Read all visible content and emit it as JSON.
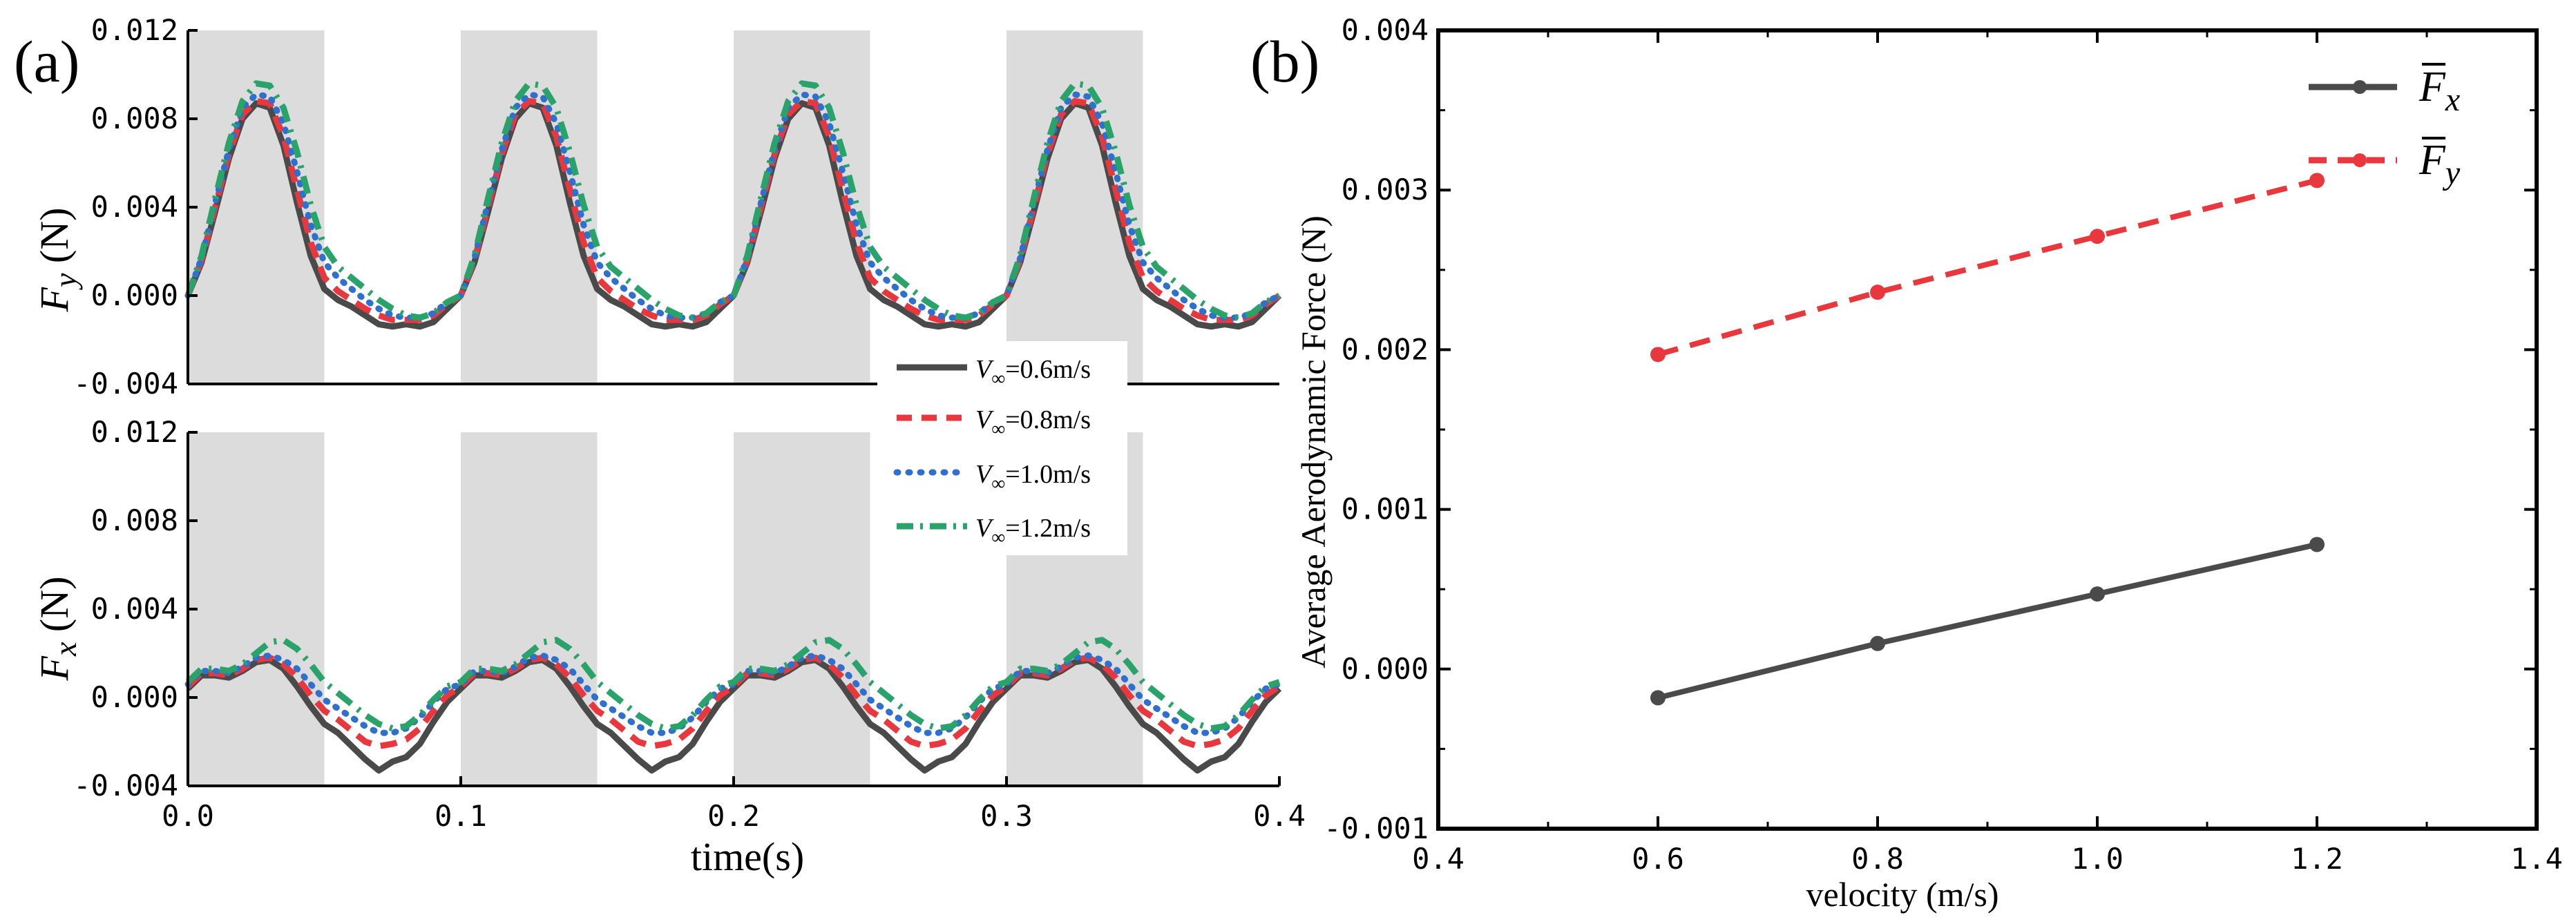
{
  "panel_labels": {
    "a": "(a)",
    "b": "(b)"
  },
  "legend_a": {
    "entries": [
      {
        "var": "V",
        "sub": "∞",
        "text": "=0.6m/s",
        "color": "#4a4a4a",
        "style": "solid"
      },
      {
        "var": "V",
        "sub": "∞",
        "text": "=0.8m/s",
        "color": "#e8383d",
        "style": "dashed"
      },
      {
        "var": "V",
        "sub": "∞",
        "text": "=1.0m/s",
        "color": "#2f6fce",
        "style": "dotted"
      },
      {
        "var": "V",
        "sub": "∞",
        "text": "=1.2m/s",
        "color": "#2aa36b",
        "style": "dashdot"
      }
    ]
  },
  "legend_b": {
    "entries": [
      {
        "var": "F",
        "sub": "x",
        "color": "#4a4a4a",
        "style": "solid"
      },
      {
        "var": "F",
        "sub": "y",
        "color": "#e8383d",
        "style": "dashed"
      }
    ]
  },
  "chart_data": [
    {
      "id": "a-top",
      "type": "line",
      "ylabel_var": "F",
      "ylabel_sub": "y",
      "ylabel_unit": " (N)",
      "xlim": [
        0.0,
        0.4
      ],
      "ylim": [
        -0.004,
        0.012
      ],
      "yticks": [
        "-0.004",
        "0.000",
        "0.004",
        "0.008",
        "0.012"
      ],
      "shaded_x_intervals": [
        [
          0.0,
          0.05
        ],
        [
          0.1,
          0.15
        ],
        [
          0.2,
          0.25
        ],
        [
          0.3,
          0.35
        ]
      ],
      "period": 0.1,
      "one_period_shape_x": [
        0.0,
        0.005,
        0.01,
        0.015,
        0.02,
        0.025,
        0.03,
        0.035,
        0.04,
        0.045,
        0.05,
        0.055,
        0.06,
        0.065,
        0.07,
        0.075,
        0.08,
        0.085,
        0.09,
        0.095,
        0.1
      ],
      "series": [
        {
          "name": "V∞=0.6m/s",
          "color": "#4a4a4a",
          "style": "solid",
          "values": [
            0.0,
            0.0015,
            0.0038,
            0.0062,
            0.008,
            0.0087,
            0.0085,
            0.0068,
            0.0042,
            0.0018,
            0.0003,
            -0.0002,
            -0.0005,
            -0.0009,
            -0.0013,
            -0.0014,
            -0.0013,
            -0.0014,
            -0.0012,
            -0.0006,
            0.0
          ]
        },
        {
          "name": "V∞=0.8m/s",
          "color": "#e8383d",
          "style": "dashed",
          "values": [
            0.0,
            0.0016,
            0.004,
            0.0064,
            0.0082,
            0.0088,
            0.0087,
            0.0072,
            0.0048,
            0.0024,
            0.0008,
            0.0002,
            -0.0002,
            -0.0006,
            -0.0009,
            -0.0011,
            -0.0011,
            -0.0011,
            -0.0009,
            -0.0004,
            0.0
          ]
        },
        {
          "name": "V∞=1.0m/s",
          "color": "#2f6fce",
          "style": "dotted",
          "values": [
            0.0,
            0.0017,
            0.0042,
            0.0066,
            0.0085,
            0.0091,
            0.009,
            0.0078,
            0.0056,
            0.0032,
            0.0015,
            0.0008,
            0.0003,
            -0.0002,
            -0.0006,
            -0.0009,
            -0.001,
            -0.001,
            -0.0008,
            -0.0003,
            0.0
          ]
        },
        {
          "name": "V∞=1.2m/s",
          "color": "#2aa36b",
          "style": "dashdot",
          "values": [
            0.0,
            0.0018,
            0.0044,
            0.0069,
            0.0088,
            0.0096,
            0.0095,
            0.0085,
            0.0065,
            0.0041,
            0.0022,
            0.0013,
            0.0008,
            0.0003,
            -0.0002,
            -0.0006,
            -0.0009,
            -0.001,
            -0.0008,
            -0.0003,
            0.0
          ]
        }
      ]
    },
    {
      "id": "a-bottom",
      "type": "line",
      "ylabel_var": "F",
      "ylabel_sub": "x",
      "ylabel_unit": " (N)",
      "xlabel": "time(s)",
      "xlim": [
        0.0,
        0.4
      ],
      "ylim": [
        -0.004,
        0.012
      ],
      "xticks": [
        "0.0",
        "0.1",
        "0.2",
        "0.3",
        "0.4"
      ],
      "yticks": [
        "-0.004",
        "0.000",
        "0.004",
        "0.008",
        "0.012"
      ],
      "shaded_x_intervals": [
        [
          0.0,
          0.05
        ],
        [
          0.1,
          0.15
        ],
        [
          0.2,
          0.25
        ],
        [
          0.3,
          0.35
        ]
      ],
      "period": 0.1,
      "one_period_shape_x": [
        0.0,
        0.005,
        0.01,
        0.015,
        0.02,
        0.025,
        0.03,
        0.035,
        0.04,
        0.045,
        0.05,
        0.055,
        0.06,
        0.065,
        0.07,
        0.075,
        0.08,
        0.085,
        0.09,
        0.095,
        0.1
      ],
      "series": [
        {
          "name": "V∞=0.6m/s",
          "color": "#4a4a4a",
          "style": "solid",
          "values": [
            0.0004,
            0.001,
            0.001,
            0.0009,
            0.0012,
            0.0016,
            0.0017,
            0.0013,
            0.0005,
            -0.0004,
            -0.0012,
            -0.0016,
            -0.0022,
            -0.0028,
            -0.0033,
            -0.0029,
            -0.0027,
            -0.0021,
            -0.0011,
            -0.0002,
            0.0004
          ]
        },
        {
          "name": "V∞=0.8m/s",
          "color": "#e8383d",
          "style": "dashed",
          "values": [
            0.0005,
            0.0011,
            0.0011,
            0.001,
            0.0013,
            0.0017,
            0.0018,
            0.0015,
            0.0009,
            0.0001,
            -0.0006,
            -0.001,
            -0.0015,
            -0.002,
            -0.0022,
            -0.0021,
            -0.0019,
            -0.0014,
            -0.0006,
            0.0001,
            0.0005
          ]
        },
        {
          "name": "V∞=1.0m/s",
          "color": "#2f6fce",
          "style": "dotted",
          "values": [
            0.0006,
            0.0012,
            0.0012,
            0.0011,
            0.0014,
            0.0018,
            0.0019,
            0.0017,
            0.0013,
            0.0006,
            -0.0001,
            -0.0005,
            -0.0009,
            -0.0013,
            -0.0016,
            -0.0016,
            -0.0014,
            -0.0009,
            -0.0002,
            0.0004,
            0.0006
          ]
        },
        {
          "name": "V∞=1.2m/s",
          "color": "#2aa36b",
          "style": "dashdot",
          "values": [
            0.0007,
            0.0013,
            0.0013,
            0.0012,
            0.0015,
            0.002,
            0.0025,
            0.0026,
            0.0022,
            0.0015,
            0.0007,
            0.0002,
            -0.0003,
            -0.0008,
            -0.0012,
            -0.0014,
            -0.0013,
            -0.0008,
            -0.0001,
            0.0005,
            0.0007
          ]
        }
      ]
    },
    {
      "id": "b",
      "type": "line",
      "xlabel": "velocity (m/s)",
      "ylabel": "Average Aerodynamic Force (N)",
      "xlim": [
        0.4,
        1.4
      ],
      "ylim": [
        -0.001,
        0.004
      ],
      "xticks": [
        "0.4",
        "0.6",
        "0.8",
        "1.0",
        "1.2",
        "1.4"
      ],
      "yticks": [
        "-0.001",
        "0.000",
        "0.001",
        "0.002",
        "0.003",
        "0.004"
      ],
      "x": [
        0.6,
        0.8,
        1.0,
        1.2
      ],
      "series": [
        {
          "name": "Fx",
          "color": "#4a4a4a",
          "style": "solid",
          "values": [
            -0.00018,
            0.00016,
            0.00047,
            0.00078
          ]
        },
        {
          "name": "Fy",
          "color": "#e8383d",
          "style": "dashed",
          "values": [
            0.00197,
            0.00236,
            0.00271,
            0.00306
          ]
        }
      ]
    }
  ]
}
